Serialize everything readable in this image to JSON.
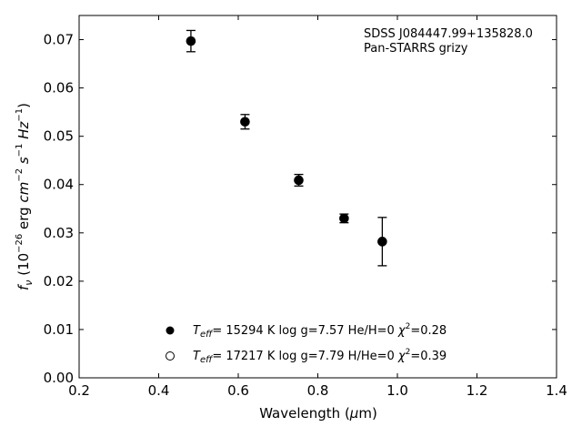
{
  "chart_data": {
    "type": "scatter",
    "xlabel": "Wavelength (μm)",
    "ylabel": "f_ν (10^-26 erg cm^-2 s^-1 Hz^-1)",
    "xlim": [
      0.2,
      1.4
    ],
    "ylim": [
      0.0,
      0.075
    ],
    "x_ticks": [
      "0.2",
      "0.4",
      "0.6",
      "0.8",
      "1.0",
      "1.2",
      "1.4"
    ],
    "y_ticks": [
      "0.00",
      "0.01",
      "0.02",
      "0.03",
      "0.04",
      "0.05",
      "0.06",
      "0.07"
    ],
    "annotation": [
      "SDSS J084447.99+135828.0",
      "Pan-STARRS grizy"
    ],
    "legend_position": "lower-center",
    "grid": false,
    "series": [
      {
        "label": "T_eff= 15294 K  log g=7.57  He/H=0  χ²=0.28",
        "label_parts": {
          "teff": "= 15294 K  log g=7.57  He/H=0  ",
          "chi": "=0.28"
        },
        "marker": "filled-circle",
        "color": "#000000",
        "points": [
          {
            "x": 0.481,
            "y": 0.0697,
            "err": 0.0022
          },
          {
            "x": 0.617,
            "y": 0.053,
            "err": 0.0015
          },
          {
            "x": 0.752,
            "y": 0.0409,
            "err": 0.0012
          },
          {
            "x": 0.866,
            "y": 0.033,
            "err": 0.0009
          },
          {
            "x": 0.962,
            "y": 0.0282,
            "err": 0.005
          }
        ]
      },
      {
        "label": "T_eff= 17217 K  log g=7.79  H/He=0  χ²=0.39",
        "label_parts": {
          "teff": "= 17217 K  log g=7.79  H/He=0  ",
          "chi": "=0.39"
        },
        "marker": "open-circle",
        "color": "#000000",
        "points": []
      }
    ]
  }
}
